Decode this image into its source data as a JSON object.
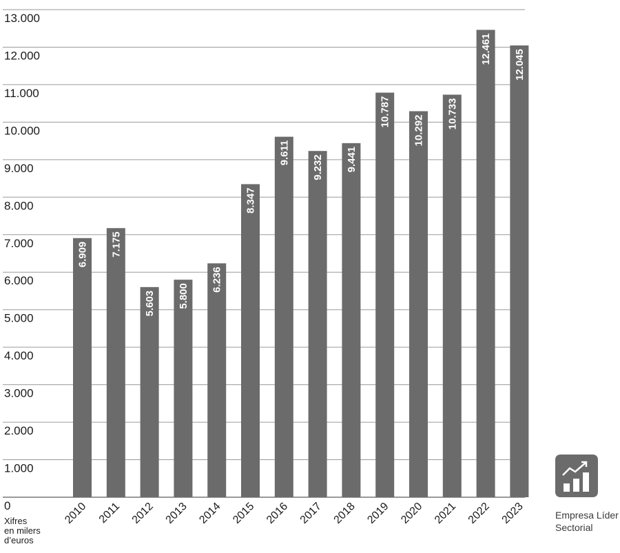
{
  "chart_data": {
    "type": "bar",
    "categories": [
      "2010",
      "2011",
      "2012",
      "2013",
      "2014",
      "2015",
      "2016",
      "2017",
      "2018",
      "2019",
      "2020",
      "2021",
      "2022",
      "2023"
    ],
    "values": [
      6909,
      7175,
      5603,
      5800,
      6236,
      8347,
      9611,
      9232,
      9441,
      10787,
      10292,
      10733,
      12461,
      12045
    ],
    "value_labels": [
      "6.909",
      "7.175",
      "5.603",
      "5.800",
      "6.236",
      "8.347",
      "9.611",
      "9.232",
      "9.441",
      "10.787",
      "10.292",
      "10.733",
      "12.461",
      "12.045"
    ],
    "y_ticks": [
      0,
      1000,
      2000,
      3000,
      4000,
      5000,
      6000,
      7000,
      8000,
      9000,
      10000,
      11000,
      12000,
      13000
    ],
    "y_tick_labels": [
      "0",
      "1.000",
      "2.000",
      "3.000",
      "4.000",
      "5.000",
      "6.000",
      "7.000",
      "8.000",
      "9.000",
      "10.000",
      "11.000",
      "12.000",
      "13.000"
    ],
    "ylim": [
      0,
      13000
    ],
    "grid": true,
    "bar_color": "#6b6b6b",
    "grid_color": "#9a9a9a"
  },
  "unit_note": {
    "line1": "Xifres",
    "line2": "en milers",
    "line3": "d’euros"
  },
  "badge": {
    "icon": "growth-chart-icon",
    "line1": "Empresa Líder",
    "line2": "Sectorial",
    "color": "#6b6b6b"
  }
}
